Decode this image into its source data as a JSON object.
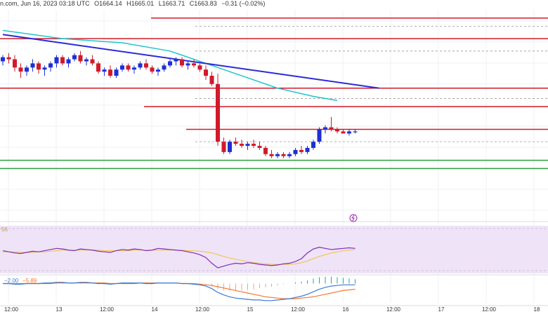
{
  "header": {
    "source_fragment": "n.com, Jun 16, 2023 03:18 UTC",
    "open": "O1664.14",
    "high": "H1665.01",
    "low": "L1663.71",
    "close": "C1663.83",
    "change": "−0.31 (−0.02%)"
  },
  "colors": {
    "up": "#1e2fd6",
    "down": "#d11a2a",
    "resistance": "#d11a2a",
    "support": "#2e9e3e",
    "trendline": "#2a2ad8",
    "moving_average": "#20c5cc",
    "rsi_line": "#7b2fb8",
    "rsi_signal": "#f0c040",
    "rsi_band": "#efe3f7",
    "macd_line": "#3a7bd5",
    "macd_signal": "#f07a30",
    "macd_hist": "#26a69a"
  },
  "chart_data": {
    "type": "candlestick",
    "ylim": [
      0,
      100
    ],
    "x_axis_labels": [
      "12:00",
      "13",
      "12:00",
      "14",
      "12:00",
      "15",
      "12:00",
      "16",
      "12:00",
      "17",
      "12:00",
      "18"
    ],
    "candles": [
      [
        75,
        78,
        73,
        77
      ],
      [
        77,
        79,
        74,
        76
      ],
      [
        76,
        78,
        70,
        72
      ],
      [
        72,
        74,
        67,
        70
      ],
      [
        70,
        73,
        68,
        72
      ],
      [
        72,
        76,
        70,
        74
      ],
      [
        74,
        75,
        69,
        71
      ],
      [
        71,
        73,
        68,
        72
      ],
      [
        72,
        75,
        70,
        74
      ],
      [
        74,
        78,
        72,
        77
      ],
      [
        77,
        78,
        73,
        74
      ],
      [
        74,
        77,
        72,
        76
      ],
      [
        76,
        79,
        75,
        78
      ],
      [
        78,
        80,
        74,
        75
      ],
      [
        75,
        77,
        73,
        76
      ],
      [
        76,
        78,
        73,
        74
      ],
      [
        74,
        75,
        69,
        70
      ],
      [
        70,
        72,
        68,
        71
      ],
      [
        71,
        73,
        67,
        68
      ],
      [
        68,
        72,
        67,
        71
      ],
      [
        71,
        74,
        70,
        73
      ],
      [
        73,
        74,
        70,
        71
      ],
      [
        71,
        73,
        69,
        72
      ],
      [
        72,
        75,
        71,
        74
      ],
      [
        74,
        76,
        71,
        72
      ],
      [
        72,
        73,
        69,
        70
      ],
      [
        70,
        72,
        68,
        71
      ],
      [
        71,
        74,
        70,
        73
      ],
      [
        73,
        76,
        72,
        75
      ],
      [
        75,
        77,
        73,
        76
      ],
      [
        76,
        77,
        72,
        73
      ],
      [
        73,
        75,
        71,
        74
      ],
      [
        74,
        76,
        72,
        73
      ],
      [
        73,
        74,
        70,
        71
      ],
      [
        71,
        73,
        66,
        68
      ],
      [
        68,
        70,
        63,
        64
      ],
      [
        64,
        69,
        34,
        36
      ],
      [
        36,
        38,
        30,
        31
      ],
      [
        31,
        37,
        30,
        36
      ],
      [
        36,
        38,
        34,
        35
      ],
      [
        35,
        37,
        33,
        34
      ],
      [
        34,
        36,
        32,
        35
      ],
      [
        35,
        37,
        33,
        34
      ],
      [
        34,
        36,
        32,
        33
      ],
      [
        33,
        34,
        29,
        30
      ],
      [
        30,
        32,
        28,
        29
      ],
      [
        29,
        31,
        28,
        30
      ],
      [
        30,
        31,
        28,
        29
      ],
      [
        29,
        31,
        28,
        30
      ],
      [
        30,
        33,
        29,
        32
      ],
      [
        32,
        34,
        30,
        31
      ],
      [
        31,
        34,
        30,
        33
      ],
      [
        33,
        37,
        32,
        36
      ],
      [
        36,
        43,
        35,
        42
      ],
      [
        42,
        44,
        40,
        43
      ],
      [
        43,
        48,
        41,
        42
      ],
      [
        42,
        43,
        40,
        41
      ],
      [
        41,
        42,
        40,
        40
      ],
      [
        40,
        42,
        39,
        41
      ],
      [
        41,
        42,
        40,
        41
      ]
    ],
    "trendline": {
      "points": [
        [
          0,
          88
        ],
        [
          63,
          62
        ]
      ]
    },
    "moving_average": {
      "points": [
        [
          0,
          90
        ],
        [
          10,
          86
        ],
        [
          20,
          84
        ],
        [
          28,
          80
        ],
        [
          34,
          74
        ],
        [
          40,
          68
        ],
        [
          46,
          62
        ],
        [
          52,
          58
        ],
        [
          56,
          56
        ]
      ]
    },
    "resistance_levels": [
      96,
      86,
      62,
      53,
      42
    ],
    "support_levels": [
      27,
      23
    ],
    "rsi": {
      "values": [
        52,
        50,
        48,
        47,
        49,
        51,
        50,
        52,
        54,
        56,
        55,
        53,
        52,
        55,
        54,
        53,
        51,
        50,
        49,
        52,
        54,
        53,
        55,
        54,
        52,
        53,
        56,
        55,
        54,
        53,
        52,
        50,
        48,
        45,
        40,
        30,
        22,
        25,
        28,
        30,
        29,
        31,
        30,
        28,
        27,
        26,
        27,
        29,
        30,
        33,
        38,
        48,
        55,
        58,
        56,
        54,
        55,
        56,
        57,
        56
      ],
      "signal": [
        50,
        50,
        50,
        49,
        49,
        49,
        50,
        50,
        51,
        52,
        53,
        53,
        53,
        53,
        53,
        53,
        53,
        52,
        52,
        52,
        52,
        52,
        53,
        53,
        53,
        53,
        53,
        53,
        53,
        53,
        53,
        52,
        52,
        51,
        50,
        48,
        45,
        42,
        39,
        37,
        35,
        33,
        31,
        30,
        29,
        28,
        28,
        28,
        28,
        29,
        31,
        34,
        38,
        42,
        45,
        48,
        50,
        52,
        53,
        54
      ],
      "label": "56"
    },
    "macd": {
      "macd": [
        0,
        0,
        -1,
        -1,
        0,
        0,
        0,
        1,
        1,
        2,
        2,
        1,
        1,
        2,
        2,
        1,
        0,
        0,
        -1,
        0,
        1,
        1,
        1,
        1,
        0,
        0,
        1,
        1,
        1,
        1,
        0,
        0,
        -1,
        -2,
        -4,
        -8,
        -14,
        -18,
        -21,
        -23,
        -24,
        -25,
        -26,
        -26,
        -27,
        -27,
        -26,
        -25,
        -24,
        -22,
        -20,
        -17,
        -13,
        -9,
        -6,
        -4,
        -3,
        -2,
        -2,
        -2
      ],
      "signal": [
        0,
        0,
        0,
        0,
        0,
        0,
        0,
        0,
        0,
        1,
        1,
        1,
        1,
        1,
        1,
        1,
        1,
        1,
        0,
        0,
        0,
        0,
        0,
        1,
        1,
        1,
        1,
        1,
        1,
        1,
        0,
        0,
        0,
        -1,
        -2,
        -3,
        -5,
        -7,
        -9,
        -11,
        -13,
        -15,
        -17,
        -19,
        -21,
        -22,
        -23,
        -24,
        -24,
        -24,
        -23,
        -22,
        -21,
        -19,
        -17,
        -15,
        -13,
        -11,
        -10,
        -9
      ],
      "labels": [
        "−2.00",
        "−5.89"
      ]
    }
  }
}
